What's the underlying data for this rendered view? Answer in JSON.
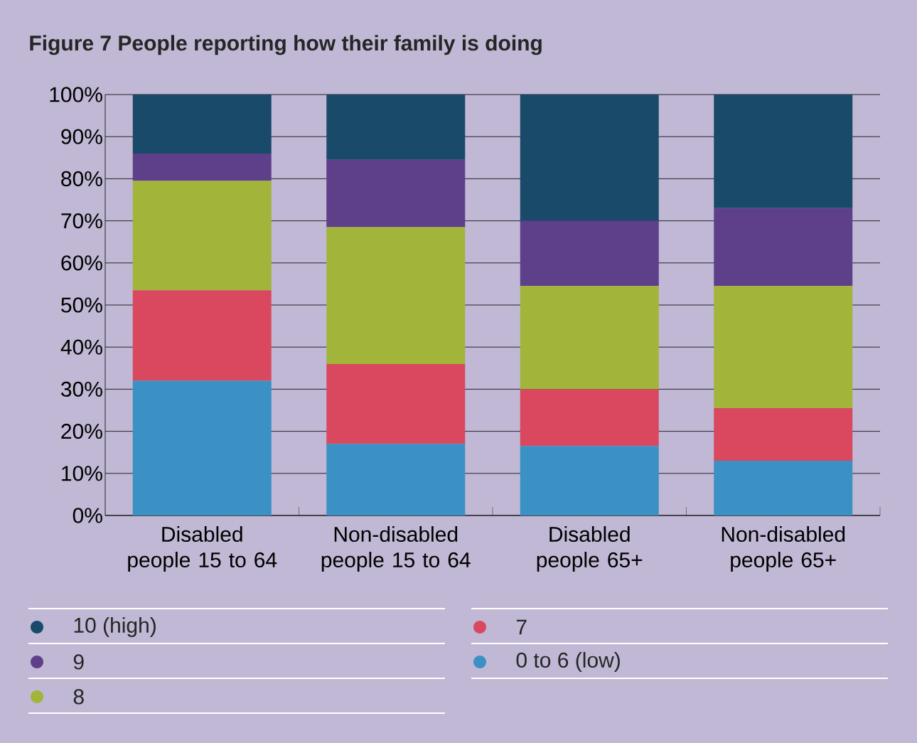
{
  "chart_data": {
    "type": "bar",
    "stacked": true,
    "title": "Figure 7 People reporting how their family is doing",
    "categories": [
      "Disabled people 15 to 64",
      "Non-disabled people 15 to 64",
      "Disabled people 65+",
      "Non-disabled people 65+"
    ],
    "series": [
      {
        "name": "0 to 6 (low)",
        "color": "#3b90c4",
        "values": [
          32,
          17,
          16.5,
          13
        ]
      },
      {
        "name": "7",
        "color": "#d9485f",
        "values": [
          21.5,
          19,
          13.5,
          12.5
        ]
      },
      {
        "name": "8",
        "color": "#a3b43a",
        "values": [
          26,
          32.5,
          24.5,
          29
        ]
      },
      {
        "name": "9",
        "color": "#5e3f8a",
        "values": [
          6.5,
          16,
          15.5,
          18.5
        ]
      },
      {
        "name": "10 (high)",
        "color": "#1a4a6a",
        "values": [
          14,
          15.5,
          30,
          27
        ]
      }
    ],
    "ylim": [
      0,
      100
    ],
    "yticks": [
      {
        "value": 0,
        "label": "0%"
      },
      {
        "value": 10,
        "label": "10%"
      },
      {
        "value": 20,
        "label": "20%"
      },
      {
        "value": 30,
        "label": "30%"
      },
      {
        "value": 40,
        "label": "40%"
      },
      {
        "value": 50,
        "label": "50%"
      },
      {
        "value": 60,
        "label": "60%"
      },
      {
        "value": 70,
        "label": "70%"
      },
      {
        "value": 80,
        "label": "80%"
      },
      {
        "value": 90,
        "label": "90%"
      },
      {
        "value": 100,
        "label": "100%"
      }
    ],
    "grid": "y",
    "legend": "bottom"
  }
}
